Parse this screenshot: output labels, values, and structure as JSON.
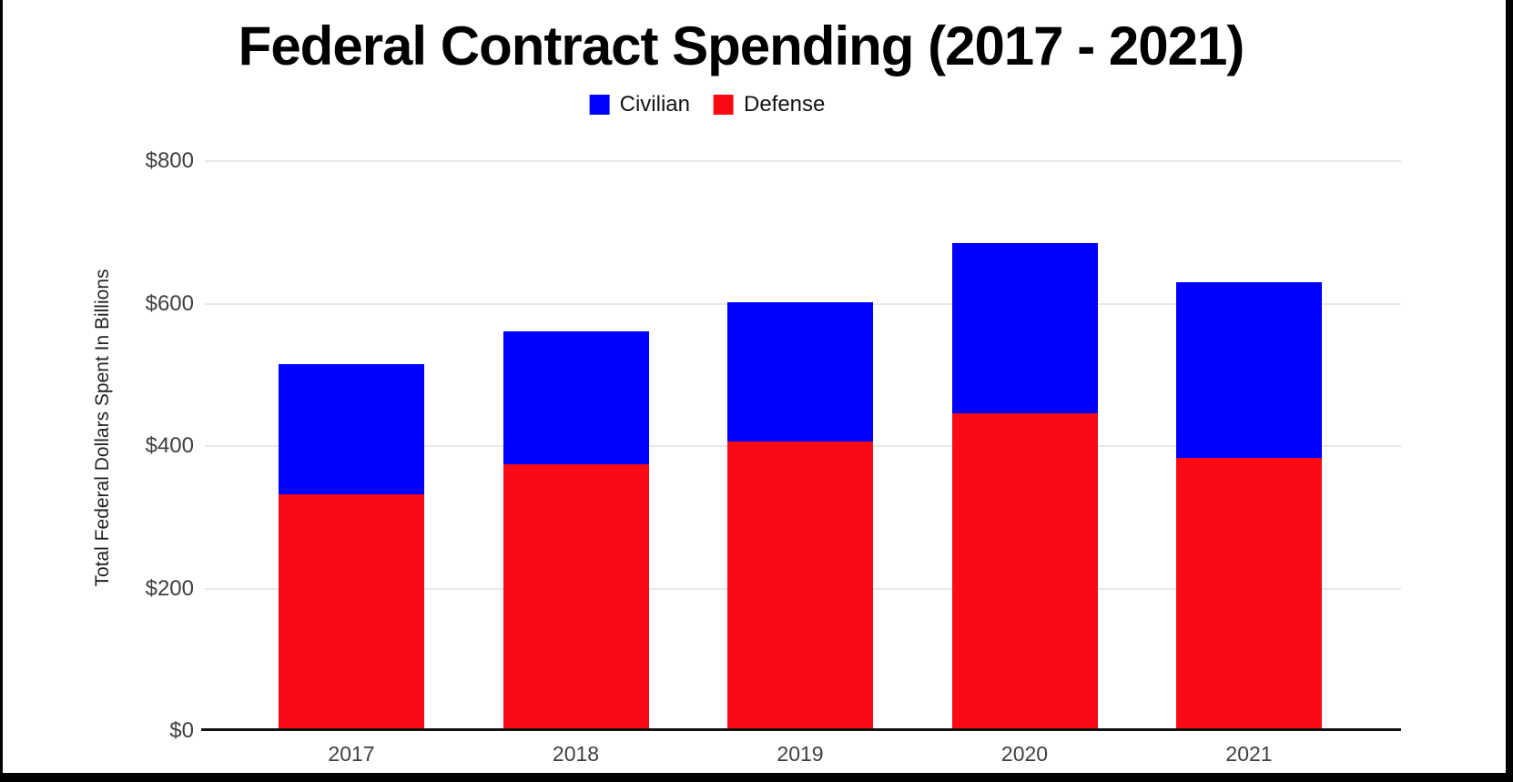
{
  "frame": {
    "background": "#ffffff",
    "border_color": "#000000"
  },
  "chart_data": {
    "type": "bar",
    "stacked": true,
    "title": "Federal Contract Spending (2017 - 2021)",
    "ylabel": "Total Federal Dollars Spent In Billions",
    "xlabel": "",
    "categories": [
      "2017",
      "2018",
      "2019",
      "2020",
      "2021"
    ],
    "series": [
      {
        "name": "Defense",
        "color": "#fa0a14",
        "values": [
          330,
          372,
          404,
          444,
          381
        ]
      },
      {
        "name": "Civilian",
        "color": "#0000fe",
        "values": [
          182,
          186,
          196,
          238,
          247
        ]
      }
    ],
    "totals": [
      512,
      558,
      600,
      682,
      628
    ],
    "ylim": [
      0,
      800
    ],
    "yticks": [
      {
        "value": 0,
        "label": "$0"
      },
      {
        "value": 200,
        "label": "$200"
      },
      {
        "value": 400,
        "label": "$400"
      },
      {
        "value": 600,
        "label": "$600"
      },
      {
        "value": 800,
        "label": "$800"
      }
    ],
    "grid": true,
    "legend_position": "top",
    "stack_order_bottom_to_top": [
      "Defense",
      "Civilian"
    ]
  },
  "legend": {
    "items": [
      {
        "label": "Civilian",
        "color": "#0000fe"
      },
      {
        "label": "Defense",
        "color": "#fa0a14"
      }
    ]
  }
}
